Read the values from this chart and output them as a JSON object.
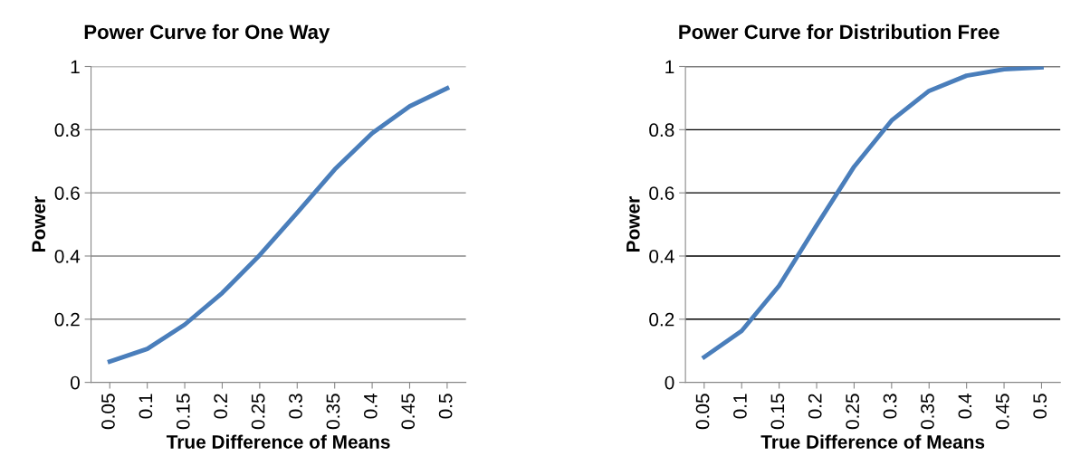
{
  "chart_data": [
    {
      "type": "line",
      "title": "Power Curve for One Way",
      "xlabel": "True Difference of Means",
      "ylabel": "Power",
      "categories": [
        "0.05",
        "0.1",
        "0.15",
        "0.2",
        "0.25",
        "0.3",
        "0.35",
        "0.4",
        "0.45",
        "0.5"
      ],
      "series": [
        {
          "color": "#4a7ebb",
          "values": [
            0.066,
            0.106,
            0.183,
            0.283,
            0.403,
            0.537,
            0.674,
            0.789,
            0.874,
            0.931
          ]
        }
      ],
      "ylim": [
        0,
        1
      ],
      "yticks": [
        0,
        0.2,
        0.4,
        0.6,
        0.8,
        1
      ],
      "grid": "y",
      "legend": false,
      "marker": "none",
      "line_style": "solid"
    },
    {
      "type": "line",
      "title": "Power Curve for Distribution Free",
      "xlabel": "True Difference of Means",
      "ylabel": "Power",
      "categories": [
        "0.05",
        "0.1",
        "0.15",
        "0.2",
        "0.25",
        "0.3",
        "0.35",
        "0.4",
        "0.45",
        "0.5"
      ],
      "series": [
        {
          "color": "#4a7ebb",
          "values": [
            0.08,
            0.163,
            0.306,
            0.497,
            0.683,
            0.829,
            0.923,
            0.971,
            0.991,
            0.997
          ]
        }
      ],
      "ylim": [
        0,
        1
      ],
      "yticks": [
        0,
        0.2,
        0.4,
        0.6,
        0.8,
        1
      ],
      "grid": "y",
      "legend": false,
      "marker": "none",
      "line_style": "solid"
    }
  ]
}
